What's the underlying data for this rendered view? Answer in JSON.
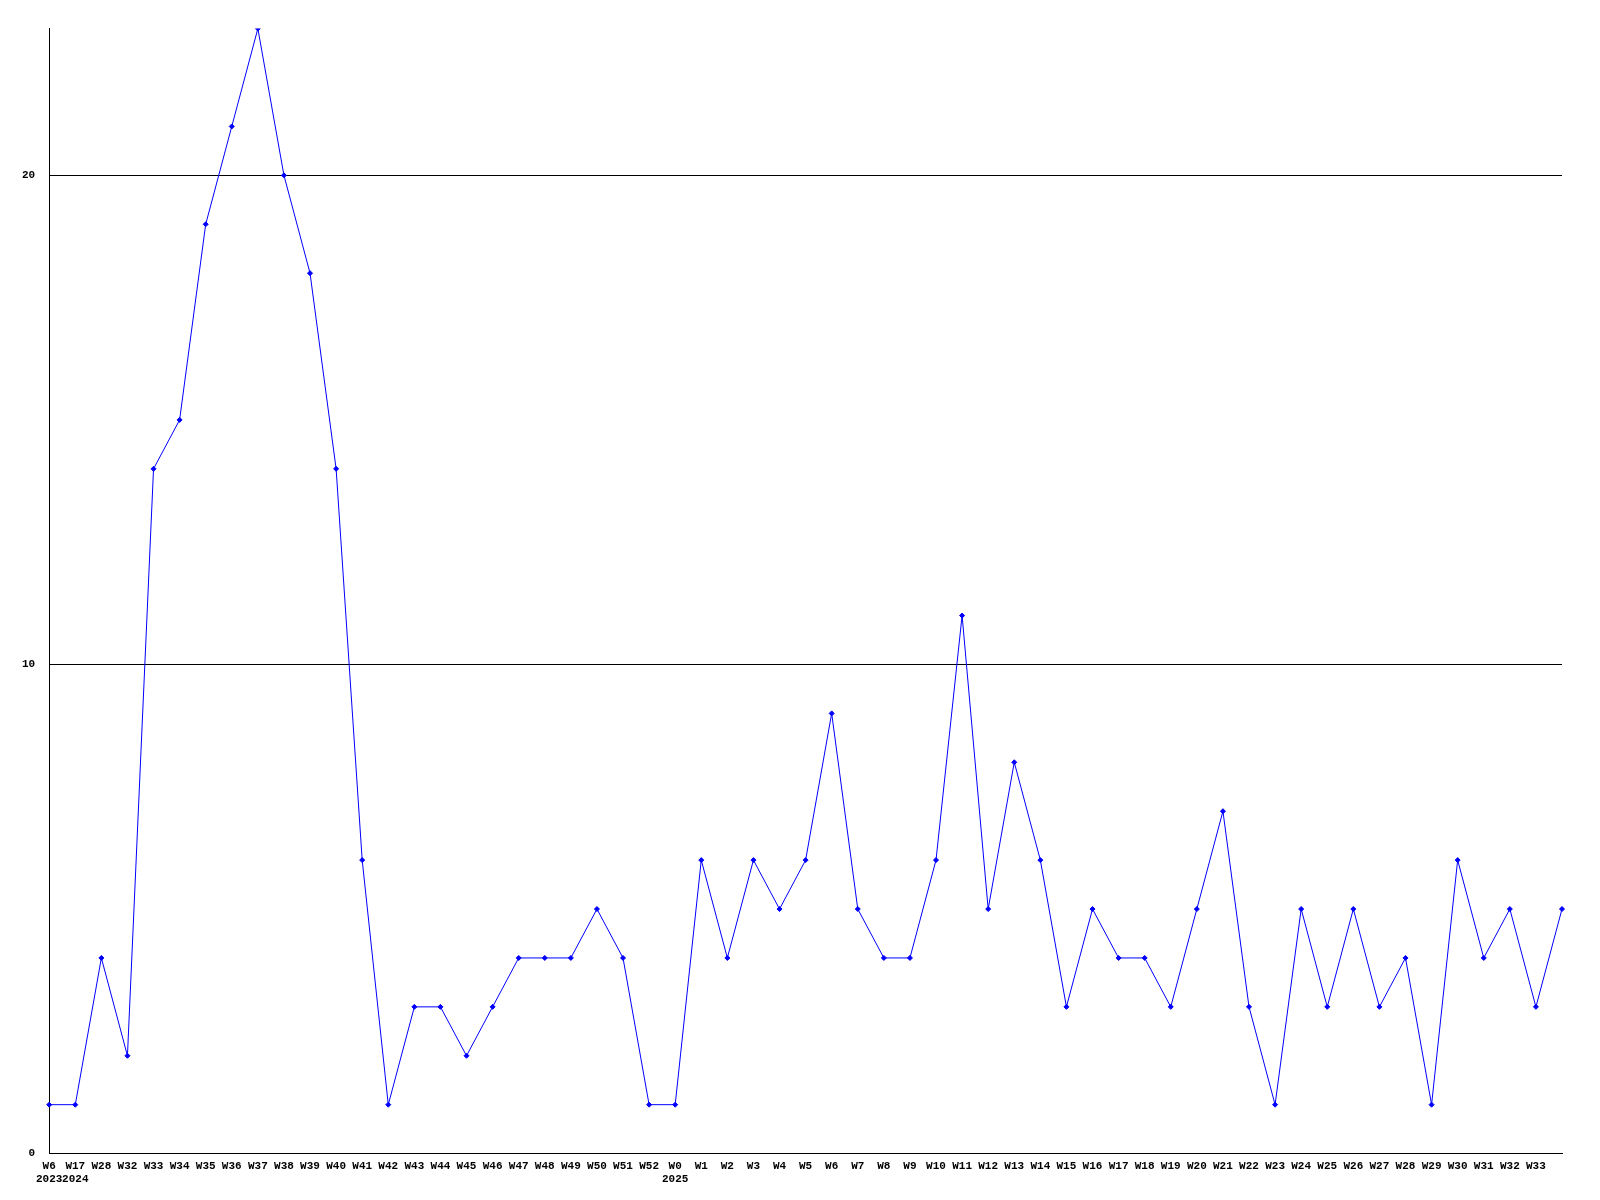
{
  "chart_data": {
    "type": "line",
    "categories": [
      "W6\n2023",
      "W17\n2024",
      "W28",
      "W32",
      "W33",
      "W34",
      "W35",
      "W36",
      "W37",
      "W38",
      "W39",
      "W40",
      "W41",
      "W42",
      "W43",
      "W44",
      "W45",
      "W46",
      "W47",
      "W48",
      "W49",
      "W50",
      "W51",
      "W52",
      "W0\n2025",
      "W1",
      "W2",
      "W3",
      "W4",
      "W5",
      "W6",
      "W7",
      "W8",
      "W9",
      "W10",
      "W11",
      "W12",
      "W13",
      "W14",
      "W15",
      "W16",
      "W17",
      "W18",
      "W19",
      "W20",
      "W21",
      "W22",
      "W23",
      "W24",
      "W25",
      "W26",
      "W27",
      "W28",
      "W29",
      "W30",
      "W31",
      "W32",
      "W33",
      null
    ],
    "series": [
      {
        "color": "#0000ff",
        "values": [
          1,
          1,
          4,
          2,
          14,
          15,
          19,
          21,
          23,
          20,
          18,
          14,
          6,
          1,
          3,
          3,
          2,
          3,
          4,
          4,
          4,
          5,
          4,
          1,
          1,
          6,
          4,
          6,
          5,
          6,
          9,
          5,
          4,
          4,
          6,
          11,
          5,
          8,
          6,
          3,
          5,
          4,
          4,
          3,
          5,
          7,
          3,
          1,
          5,
          3,
          5,
          3,
          4,
          1,
          6,
          4,
          5,
          3,
          5
        ]
      }
    ],
    "ylim": [
      0,
      23
    ],
    "yticks": [
      0,
      10,
      20
    ],
    "grid": "y",
    "legend": false,
    "marker": "diamond",
    "line_style": "solid"
  }
}
